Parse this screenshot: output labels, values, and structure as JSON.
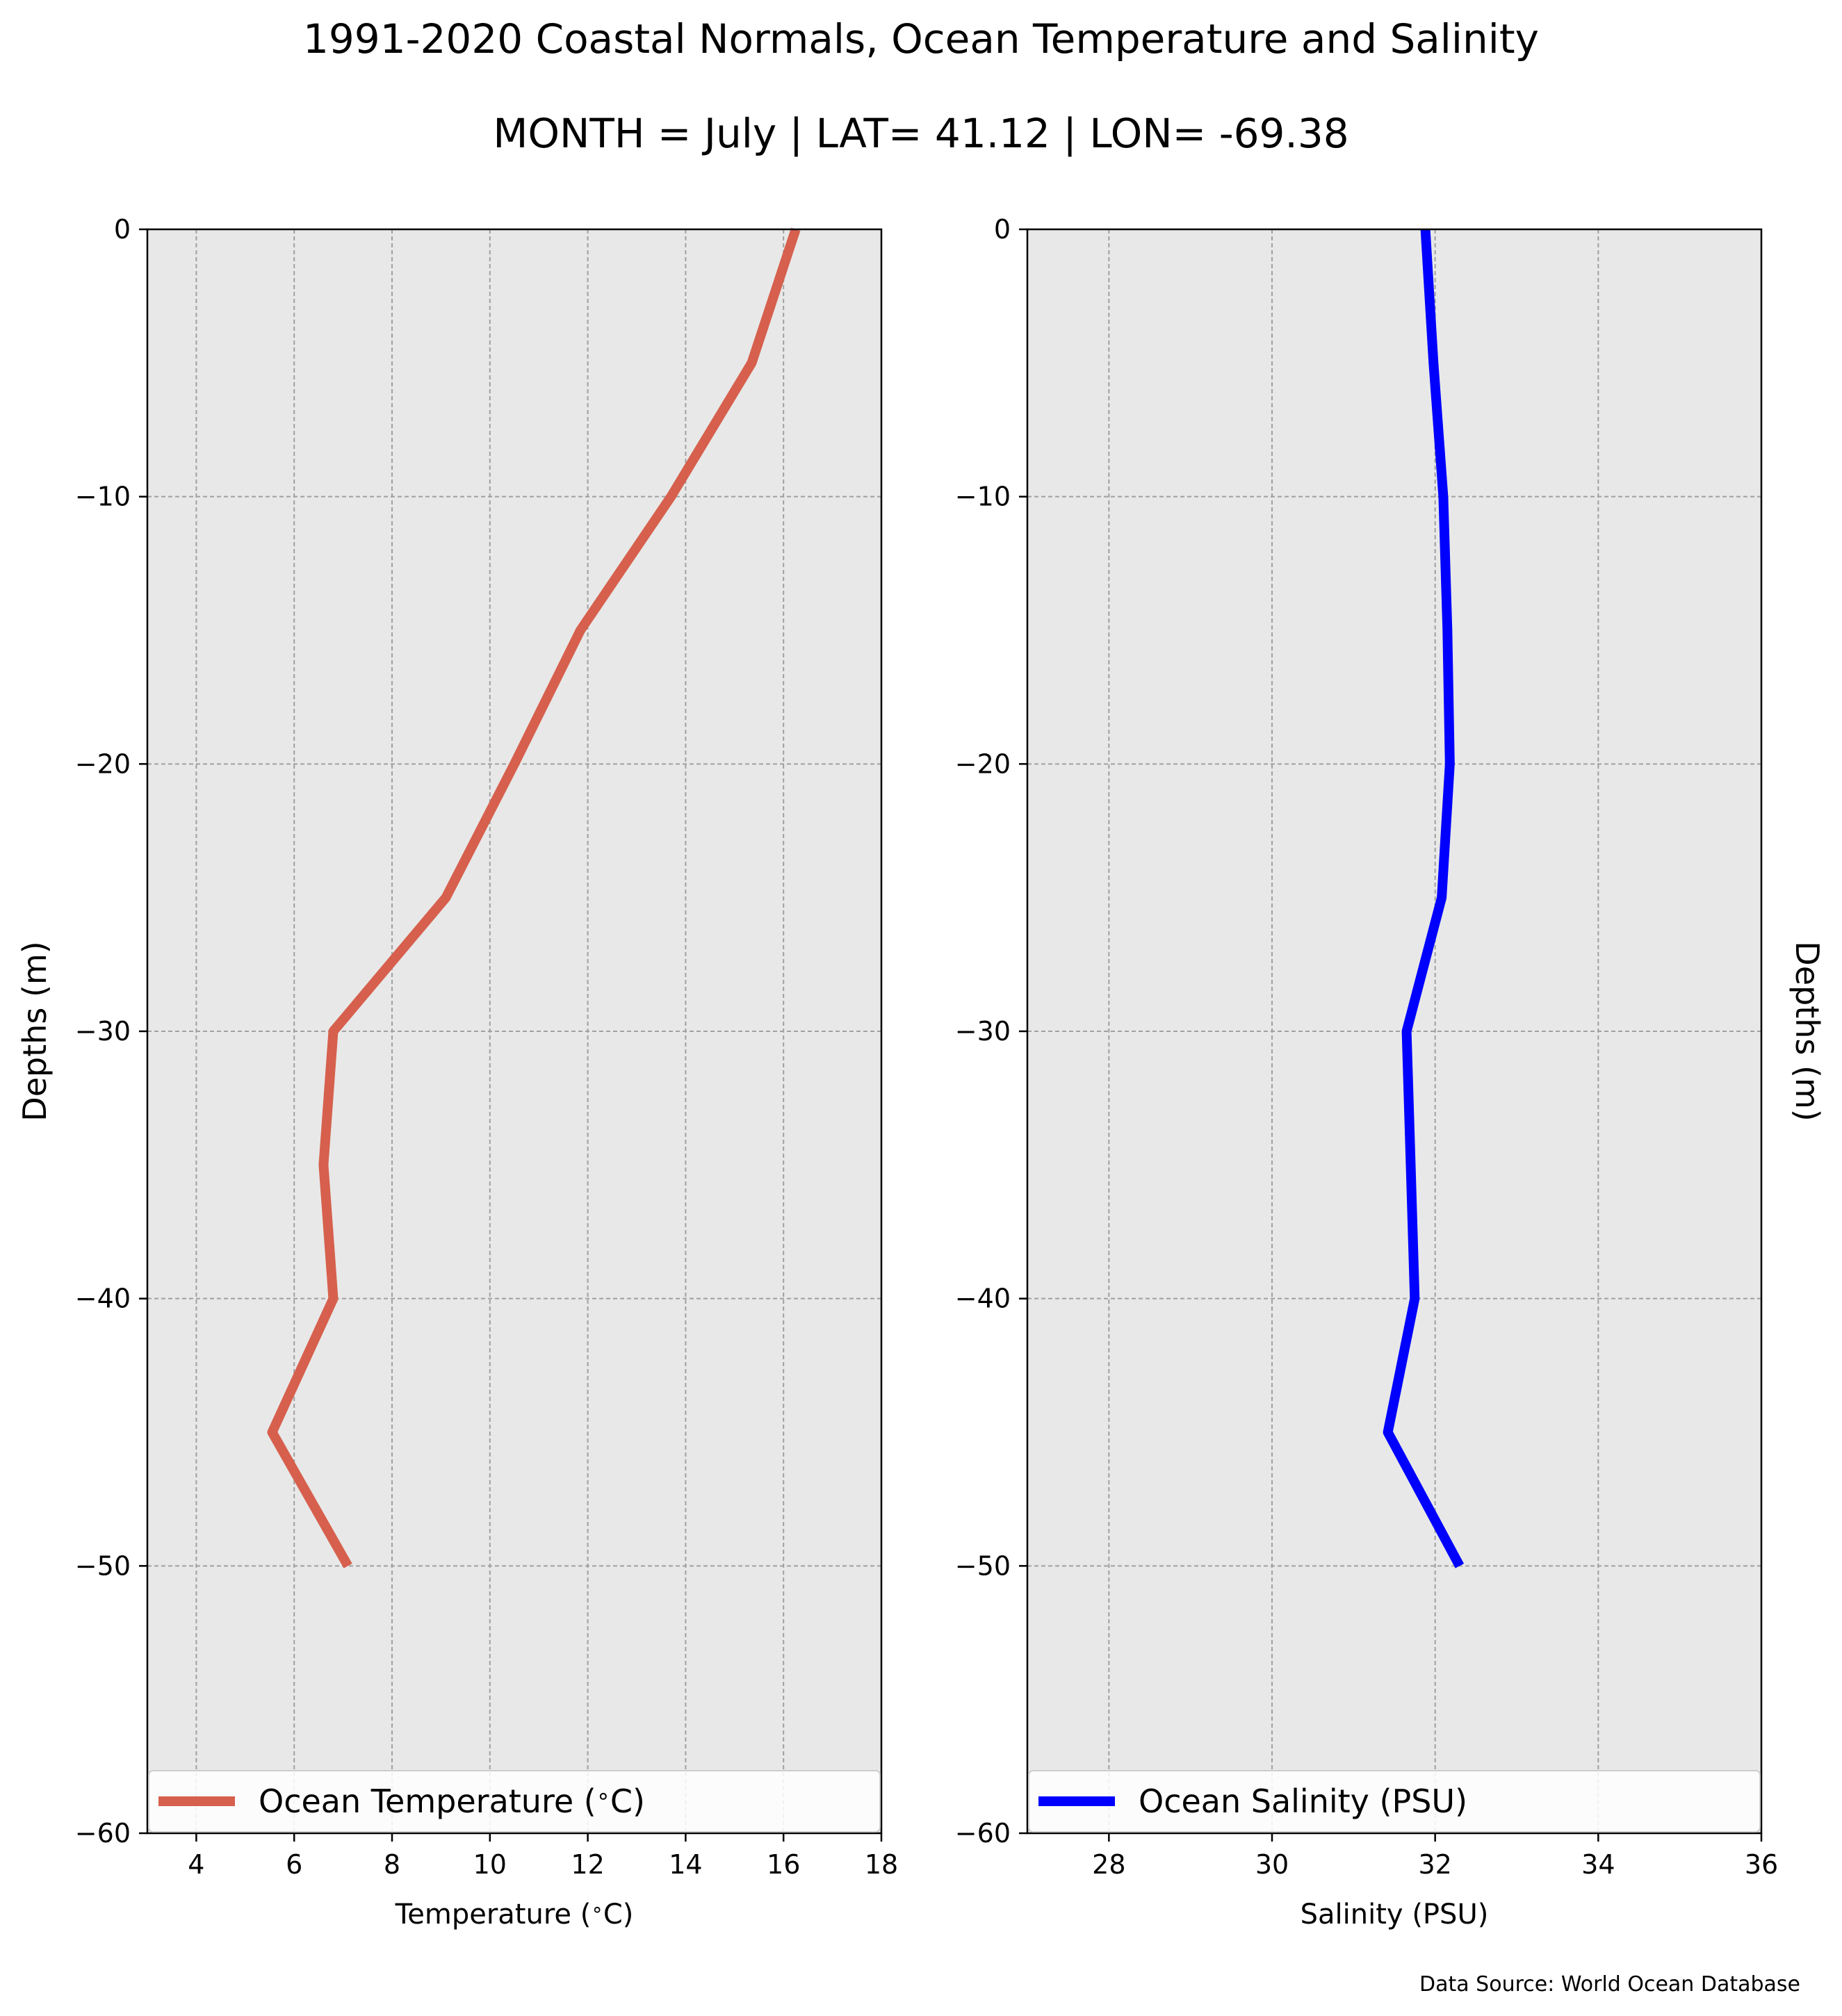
{
  "figure": {
    "title": "1991-2020 Coastal Normals, Ocean Temperature and Salinity",
    "subtitle": "MONTH = July | LAT= 41.12 | LON= -69.38",
    "source_note": "Data Source: World Ocean Database"
  },
  "chart_data": [
    {
      "type": "line",
      "title": "",
      "xlabel": "Temperature ($^\\circ$C)",
      "ylabel": "Depths (m)",
      "ylabel_side": "left",
      "xlim": [
        3,
        18
      ],
      "ylim": [
        -60,
        0
      ],
      "xticks": [
        4,
        6,
        8,
        10,
        12,
        14,
        16,
        18
      ],
      "yticks": [
        0,
        -10,
        -20,
        -30,
        -40,
        -50,
        -60
      ],
      "grid": true,
      "legend": "lower-center",
      "background": "#e8e8e8",
      "series": [
        {
          "name": "Ocean Temperature ($^\\circ$C)",
          "color": "#d6604d",
          "points": [
            {
              "x": 16.25,
              "y": 0
            },
            {
              "x": 15.35,
              "y": -5
            },
            {
              "x": 13.7,
              "y": -10
            },
            {
              "x": 11.85,
              "y": -15
            },
            {
              "x": 10.5,
              "y": -20
            },
            {
              "x": 9.1,
              "y": -25
            },
            {
              "x": 6.8,
              "y": -30
            },
            {
              "x": 6.6,
              "y": -35
            },
            {
              "x": 6.8,
              "y": -40
            },
            {
              "x": 5.55,
              "y": -45
            },
            {
              "x": 7.1,
              "y": -50
            }
          ]
        }
      ]
    },
    {
      "type": "line",
      "title": "",
      "xlabel": "Salinity (PSU)",
      "ylabel": "Depths (m)",
      "ylabel_side": "right",
      "xlim": [
        27,
        36
      ],
      "ylim": [
        -60,
        0
      ],
      "xticks": [
        28,
        30,
        32,
        34,
        36
      ],
      "yticks": [
        0,
        -10,
        -20,
        -30,
        -40,
        -50,
        -60
      ],
      "grid": true,
      "legend": "lower-center",
      "background": "#e8e8e8",
      "series": [
        {
          "name": "Ocean Salinity (PSU)",
          "color": "#0000ff",
          "points": [
            {
              "x": 31.88,
              "y": 0
            },
            {
              "x": 31.98,
              "y": -5
            },
            {
              "x": 32.1,
              "y": -10
            },
            {
              "x": 32.15,
              "y": -15
            },
            {
              "x": 32.18,
              "y": -20
            },
            {
              "x": 32.08,
              "y": -25
            },
            {
              "x": 31.65,
              "y": -30
            },
            {
              "x": 31.7,
              "y": -35
            },
            {
              "x": 31.75,
              "y": -40
            },
            {
              "x": 31.42,
              "y": -45
            },
            {
              "x": 32.3,
              "y": -50
            }
          ]
        }
      ]
    }
  ]
}
